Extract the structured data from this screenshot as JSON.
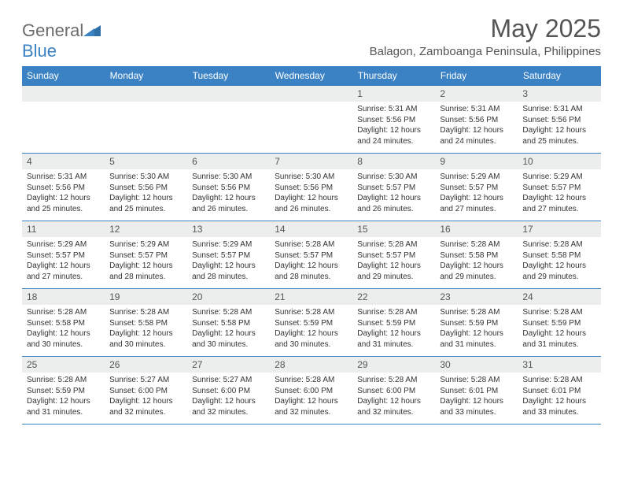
{
  "logo": {
    "text_gray": "General",
    "text_blue": "Blue"
  },
  "title": "May 2025",
  "location": "Balagon, Zamboanga Peninsula, Philippines",
  "colors": {
    "header_bg": "#3b82c4",
    "header_text": "#ffffff",
    "daynum_bg": "#eceded",
    "text": "#555555",
    "border": "#3b82c4"
  },
  "weekdays": [
    "Sunday",
    "Monday",
    "Tuesday",
    "Wednesday",
    "Thursday",
    "Friday",
    "Saturday"
  ],
  "weeks": [
    [
      null,
      null,
      null,
      null,
      {
        "n": "1",
        "sr": "5:31 AM",
        "ss": "5:56 PM",
        "dl": "12 hours and 24 minutes."
      },
      {
        "n": "2",
        "sr": "5:31 AM",
        "ss": "5:56 PM",
        "dl": "12 hours and 24 minutes."
      },
      {
        "n": "3",
        "sr": "5:31 AM",
        "ss": "5:56 PM",
        "dl": "12 hours and 25 minutes."
      }
    ],
    [
      {
        "n": "4",
        "sr": "5:31 AM",
        "ss": "5:56 PM",
        "dl": "12 hours and 25 minutes."
      },
      {
        "n": "5",
        "sr": "5:30 AM",
        "ss": "5:56 PM",
        "dl": "12 hours and 25 minutes."
      },
      {
        "n": "6",
        "sr": "5:30 AM",
        "ss": "5:56 PM",
        "dl": "12 hours and 26 minutes."
      },
      {
        "n": "7",
        "sr": "5:30 AM",
        "ss": "5:56 PM",
        "dl": "12 hours and 26 minutes."
      },
      {
        "n": "8",
        "sr": "5:30 AM",
        "ss": "5:57 PM",
        "dl": "12 hours and 26 minutes."
      },
      {
        "n": "9",
        "sr": "5:29 AM",
        "ss": "5:57 PM",
        "dl": "12 hours and 27 minutes."
      },
      {
        "n": "10",
        "sr": "5:29 AM",
        "ss": "5:57 PM",
        "dl": "12 hours and 27 minutes."
      }
    ],
    [
      {
        "n": "11",
        "sr": "5:29 AM",
        "ss": "5:57 PM",
        "dl": "12 hours and 27 minutes."
      },
      {
        "n": "12",
        "sr": "5:29 AM",
        "ss": "5:57 PM",
        "dl": "12 hours and 28 minutes."
      },
      {
        "n": "13",
        "sr": "5:29 AM",
        "ss": "5:57 PM",
        "dl": "12 hours and 28 minutes."
      },
      {
        "n": "14",
        "sr": "5:28 AM",
        "ss": "5:57 PM",
        "dl": "12 hours and 28 minutes."
      },
      {
        "n": "15",
        "sr": "5:28 AM",
        "ss": "5:57 PM",
        "dl": "12 hours and 29 minutes."
      },
      {
        "n": "16",
        "sr": "5:28 AM",
        "ss": "5:58 PM",
        "dl": "12 hours and 29 minutes."
      },
      {
        "n": "17",
        "sr": "5:28 AM",
        "ss": "5:58 PM",
        "dl": "12 hours and 29 minutes."
      }
    ],
    [
      {
        "n": "18",
        "sr": "5:28 AM",
        "ss": "5:58 PM",
        "dl": "12 hours and 30 minutes."
      },
      {
        "n": "19",
        "sr": "5:28 AM",
        "ss": "5:58 PM",
        "dl": "12 hours and 30 minutes."
      },
      {
        "n": "20",
        "sr": "5:28 AM",
        "ss": "5:58 PM",
        "dl": "12 hours and 30 minutes."
      },
      {
        "n": "21",
        "sr": "5:28 AM",
        "ss": "5:59 PM",
        "dl": "12 hours and 30 minutes."
      },
      {
        "n": "22",
        "sr": "5:28 AM",
        "ss": "5:59 PM",
        "dl": "12 hours and 31 minutes."
      },
      {
        "n": "23",
        "sr": "5:28 AM",
        "ss": "5:59 PM",
        "dl": "12 hours and 31 minutes."
      },
      {
        "n": "24",
        "sr": "5:28 AM",
        "ss": "5:59 PM",
        "dl": "12 hours and 31 minutes."
      }
    ],
    [
      {
        "n": "25",
        "sr": "5:28 AM",
        "ss": "5:59 PM",
        "dl": "12 hours and 31 minutes."
      },
      {
        "n": "26",
        "sr": "5:27 AM",
        "ss": "6:00 PM",
        "dl": "12 hours and 32 minutes."
      },
      {
        "n": "27",
        "sr": "5:27 AM",
        "ss": "6:00 PM",
        "dl": "12 hours and 32 minutes."
      },
      {
        "n": "28",
        "sr": "5:28 AM",
        "ss": "6:00 PM",
        "dl": "12 hours and 32 minutes."
      },
      {
        "n": "29",
        "sr": "5:28 AM",
        "ss": "6:00 PM",
        "dl": "12 hours and 32 minutes."
      },
      {
        "n": "30",
        "sr": "5:28 AM",
        "ss": "6:01 PM",
        "dl": "12 hours and 33 minutes."
      },
      {
        "n": "31",
        "sr": "5:28 AM",
        "ss": "6:01 PM",
        "dl": "12 hours and 33 minutes."
      }
    ]
  ],
  "labels": {
    "sunrise": "Sunrise:",
    "sunset": "Sunset:",
    "daylight": "Daylight:"
  }
}
